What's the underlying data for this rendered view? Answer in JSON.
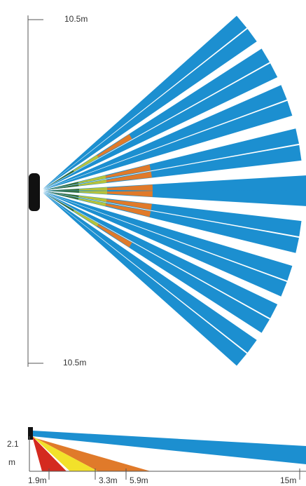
{
  "top_view": {
    "top_range": "10.5m",
    "bottom_range": "10.5m"
  },
  "side_view": {
    "height": "2.1",
    "height_unit": "m",
    "distances": [
      "1.9m",
      "3.3m",
      "5.9m",
      "15m"
    ]
  }
}
